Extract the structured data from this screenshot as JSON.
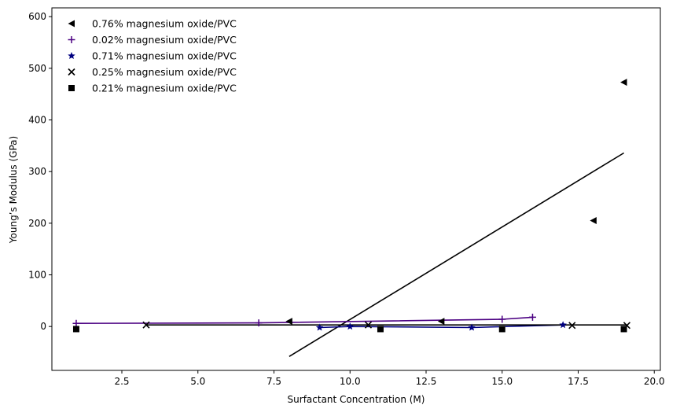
{
  "chart_data": {
    "type": "scatter",
    "xlabel": "Surfactant Concentration (M)",
    "ylabel": "Young’s Modulus (GPa)",
    "xlim": [
      0.2,
      20.2
    ],
    "ylim": [
      -85,
      617
    ],
    "x_ticks": [
      2.5,
      5.0,
      7.5,
      10.0,
      12.5,
      15.0,
      17.5,
      20.0
    ],
    "x_tick_labels": [
      "2.5",
      "5.0",
      "7.5",
      "10.0",
      "12.5",
      "15.0",
      "17.5",
      "20.0"
    ],
    "y_ticks": [
      0,
      100,
      200,
      300,
      400,
      500,
      600
    ],
    "y_tick_labels": [
      "0",
      "100",
      "200",
      "300",
      "400",
      "500",
      "600"
    ],
    "legend_position": "top-left",
    "grid": false,
    "series": [
      {
        "name": "0.76% magnesium oxide/PVC",
        "marker": "triangle-left",
        "color": "#000000",
        "points": [
          [
            8.0,
            10
          ],
          [
            13.0,
            10
          ],
          [
            18.0,
            205
          ],
          [
            19.0,
            473
          ]
        ],
        "fit_line": {
          "color": "#000000",
          "points": [
            [
              8.0,
              -58
            ],
            [
              19.0,
              336
            ]
          ]
        }
      },
      {
        "name": "0.02% magnesium oxide/PVC",
        "marker": "plus",
        "color": "#4b0082",
        "points": [
          [
            1.0,
            6
          ],
          [
            7.0,
            7
          ],
          [
            15.0,
            14
          ],
          [
            16.0,
            18
          ]
        ],
        "fit_line": {
          "color": "#4b0082",
          "points": [
            [
              1.0,
              6
            ],
            [
              7.0,
              7
            ],
            [
              15.0,
              14
            ],
            [
              16.0,
              18
            ]
          ]
        }
      },
      {
        "name": "0.71% magnesium oxide/PVC",
        "marker": "star",
        "color": "#000080",
        "points": [
          [
            9.0,
            -2
          ],
          [
            10.0,
            0
          ],
          [
            14.0,
            -2
          ],
          [
            17.0,
            3
          ]
        ],
        "fit_line": {
          "color": "#000080",
          "points": [
            [
              9.0,
              -2
            ],
            [
              10.0,
              0
            ],
            [
              14.0,
              -2
            ],
            [
              17.0,
              3
            ]
          ]
        }
      },
      {
        "name": "0.25% magnesium oxide/PVC",
        "marker": "x",
        "color": "#000000",
        "points": [
          [
            3.3,
            3
          ],
          [
            10.6,
            3
          ],
          [
            17.3,
            2
          ],
          [
            19.1,
            2
          ]
        ],
        "fit_line": {
          "color": "#000000",
          "points": [
            [
              3.3,
              3
            ],
            [
              19.1,
              3
            ]
          ]
        }
      },
      {
        "name": "0.21% magnesium oxide/PVC",
        "marker": "square",
        "color": "#000000",
        "points": [
          [
            1.0,
            -5
          ],
          [
            11.0,
            -5
          ],
          [
            15.0,
            -5
          ],
          [
            19.0,
            -5
          ]
        ],
        "fit_line": null
      }
    ]
  }
}
